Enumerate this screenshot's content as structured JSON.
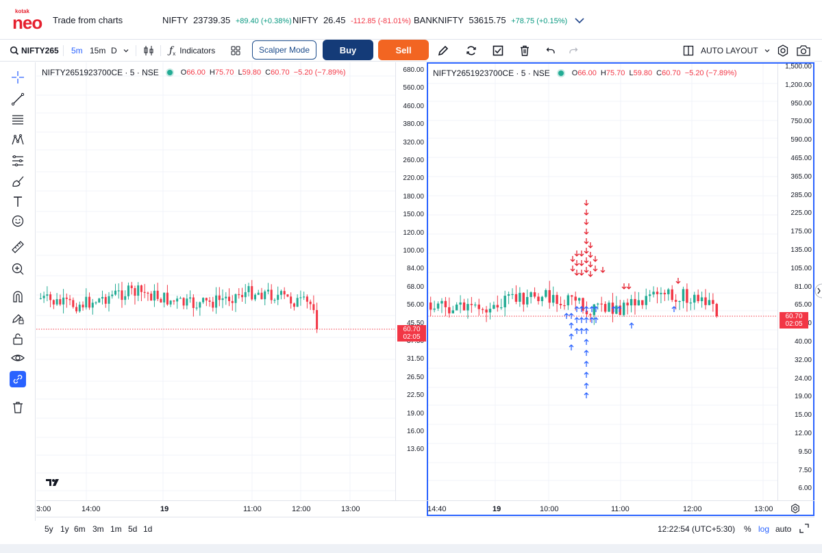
{
  "header": {
    "logo_small": "kotak",
    "logo_main": "neo",
    "title": "Trade from charts",
    "tickers": [
      {
        "name": "NIFTY",
        "price": "23739.35",
        "change": "+89.40 (+0.38%)",
        "dir": "up"
      },
      {
        "name": "NIFTY",
        "price": "26.45",
        "change": "-112.85 (-81.01%)",
        "dir": "dn"
      },
      {
        "name": "BANKNIFTY",
        "price": "53615.75",
        "change": "+78.75 (+0.15%)",
        "dir": "up"
      }
    ]
  },
  "toolbar": {
    "symbol": "NIFTY265",
    "intervals": [
      "5m",
      "15m",
      "D"
    ],
    "indicators_label": "Indicators",
    "scalper_label": "Scalper Mode",
    "buy_label": "Buy",
    "sell_label": "Sell",
    "layout_label": "AUTO LAYOUT"
  },
  "left_tools": [
    "crosshair-icon",
    "trendline-icon",
    "fib-icon",
    "pattern-icon",
    "prediction-icon",
    "brush-icon",
    "text-icon",
    "emoji-icon",
    "ruler-icon",
    "zoom-in-icon",
    "magnet-icon",
    "lock-drawing-icon",
    "lock-icon",
    "eye-icon",
    "link-icon",
    "trash-icon"
  ],
  "left_chart": {
    "symbol": "NIFTY2651923700CE · 5 · NSE",
    "o_label": "O",
    "o": "66.00",
    "h_label": "H",
    "h": "75.70",
    "l_label": "L",
    "l": "59.80",
    "c_label": "C",
    "c": "60.70",
    "change": "−5.20 (−7.89%)",
    "y_ticks": [
      "680.00",
      "560.00",
      "460.00",
      "380.00",
      "320.00",
      "260.00",
      "220.00",
      "180.00",
      "150.00",
      "120.00",
      "100.00",
      "84.00",
      "68.00",
      "56.00",
      "45.50",
      "37.50",
      "31.50",
      "26.50",
      "22.50",
      "19.00",
      "16.00",
      "13.60"
    ],
    "price_tag": "60.70",
    "countdown": "02:05",
    "x_ticks": [
      "3:00",
      "14:00",
      "19",
      "11:00",
      "12:00",
      "13:00"
    ]
  },
  "right_chart": {
    "symbol": "NIFTY2651923700CE · 5 · NSE",
    "o_label": "O",
    "o": "66.00",
    "h_label": "H",
    "h": "75.70",
    "l_label": "L",
    "l": "59.80",
    "c_label": "C",
    "c": "60.70",
    "change": "−5.20 (−7.89%)",
    "y_ticks": [
      "1,500.00",
      "1,200.00",
      "950.00",
      "750.00",
      "590.00",
      "465.00",
      "365.00",
      "285.00",
      "225.00",
      "175.00",
      "135.00",
      "105.00",
      "81.00",
      "65.00",
      "50.00",
      "40.00",
      "32.00",
      "24.00",
      "19.00",
      "15.00",
      "12.00",
      "9.50",
      "7.50",
      "6.00"
    ],
    "price_tag": "60.70",
    "countdown": "02:05",
    "x_ticks": [
      "14:40",
      "19",
      "10:00",
      "11:00",
      "12:00",
      "13:00"
    ]
  },
  "bottom": {
    "ranges": [
      "5y",
      "1y",
      "6m",
      "3m",
      "1m",
      "5d",
      "1d"
    ],
    "clock": "12:22:54 (UTC+5:30)",
    "percent": "%",
    "log": "log",
    "auto": "auto"
  },
  "colors": {
    "up": "#22ab94",
    "down": "#f23645",
    "accent": "#2962ff",
    "buy": "#143b78",
    "sell": "#f26522"
  }
}
